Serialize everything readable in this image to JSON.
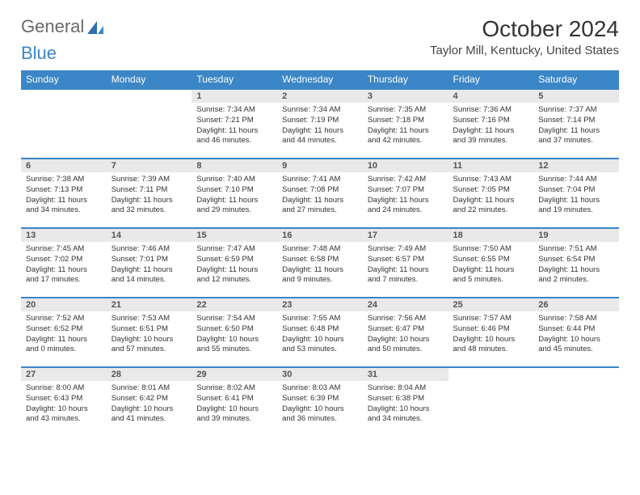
{
  "logo": {
    "part1": "General",
    "part2": "Blue"
  },
  "title": "October 2024",
  "location": "Taylor Mill, Kentucky, United States",
  "colors": {
    "header_bg": "#3b86c6",
    "header_text": "#ffffff",
    "daynum_bg": "#e9e9e9",
    "border": "#3b86c6",
    "text": "#333333"
  },
  "weekdays": [
    "Sunday",
    "Monday",
    "Tuesday",
    "Wednesday",
    "Thursday",
    "Friday",
    "Saturday"
  ],
  "weeks": [
    [
      {
        "blank": true
      },
      {
        "blank": true
      },
      {
        "n": "1",
        "sr": "Sunrise: 7:34 AM",
        "ss": "Sunset: 7:21 PM",
        "dl": "Daylight: 11 hours and 46 minutes."
      },
      {
        "n": "2",
        "sr": "Sunrise: 7:34 AM",
        "ss": "Sunset: 7:19 PM",
        "dl": "Daylight: 11 hours and 44 minutes."
      },
      {
        "n": "3",
        "sr": "Sunrise: 7:35 AM",
        "ss": "Sunset: 7:18 PM",
        "dl": "Daylight: 11 hours and 42 minutes."
      },
      {
        "n": "4",
        "sr": "Sunrise: 7:36 AM",
        "ss": "Sunset: 7:16 PM",
        "dl": "Daylight: 11 hours and 39 minutes."
      },
      {
        "n": "5",
        "sr": "Sunrise: 7:37 AM",
        "ss": "Sunset: 7:14 PM",
        "dl": "Daylight: 11 hours and 37 minutes."
      }
    ],
    [
      {
        "n": "6",
        "sr": "Sunrise: 7:38 AM",
        "ss": "Sunset: 7:13 PM",
        "dl": "Daylight: 11 hours and 34 minutes."
      },
      {
        "n": "7",
        "sr": "Sunrise: 7:39 AM",
        "ss": "Sunset: 7:11 PM",
        "dl": "Daylight: 11 hours and 32 minutes."
      },
      {
        "n": "8",
        "sr": "Sunrise: 7:40 AM",
        "ss": "Sunset: 7:10 PM",
        "dl": "Daylight: 11 hours and 29 minutes."
      },
      {
        "n": "9",
        "sr": "Sunrise: 7:41 AM",
        "ss": "Sunset: 7:08 PM",
        "dl": "Daylight: 11 hours and 27 minutes."
      },
      {
        "n": "10",
        "sr": "Sunrise: 7:42 AM",
        "ss": "Sunset: 7:07 PM",
        "dl": "Daylight: 11 hours and 24 minutes."
      },
      {
        "n": "11",
        "sr": "Sunrise: 7:43 AM",
        "ss": "Sunset: 7:05 PM",
        "dl": "Daylight: 11 hours and 22 minutes."
      },
      {
        "n": "12",
        "sr": "Sunrise: 7:44 AM",
        "ss": "Sunset: 7:04 PM",
        "dl": "Daylight: 11 hours and 19 minutes."
      }
    ],
    [
      {
        "n": "13",
        "sr": "Sunrise: 7:45 AM",
        "ss": "Sunset: 7:02 PM",
        "dl": "Daylight: 11 hours and 17 minutes."
      },
      {
        "n": "14",
        "sr": "Sunrise: 7:46 AM",
        "ss": "Sunset: 7:01 PM",
        "dl": "Daylight: 11 hours and 14 minutes."
      },
      {
        "n": "15",
        "sr": "Sunrise: 7:47 AM",
        "ss": "Sunset: 6:59 PM",
        "dl": "Daylight: 11 hours and 12 minutes."
      },
      {
        "n": "16",
        "sr": "Sunrise: 7:48 AM",
        "ss": "Sunset: 6:58 PM",
        "dl": "Daylight: 11 hours and 9 minutes."
      },
      {
        "n": "17",
        "sr": "Sunrise: 7:49 AM",
        "ss": "Sunset: 6:57 PM",
        "dl": "Daylight: 11 hours and 7 minutes."
      },
      {
        "n": "18",
        "sr": "Sunrise: 7:50 AM",
        "ss": "Sunset: 6:55 PM",
        "dl": "Daylight: 11 hours and 5 minutes."
      },
      {
        "n": "19",
        "sr": "Sunrise: 7:51 AM",
        "ss": "Sunset: 6:54 PM",
        "dl": "Daylight: 11 hours and 2 minutes."
      }
    ],
    [
      {
        "n": "20",
        "sr": "Sunrise: 7:52 AM",
        "ss": "Sunset: 6:52 PM",
        "dl": "Daylight: 11 hours and 0 minutes."
      },
      {
        "n": "21",
        "sr": "Sunrise: 7:53 AM",
        "ss": "Sunset: 6:51 PM",
        "dl": "Daylight: 10 hours and 57 minutes."
      },
      {
        "n": "22",
        "sr": "Sunrise: 7:54 AM",
        "ss": "Sunset: 6:50 PM",
        "dl": "Daylight: 10 hours and 55 minutes."
      },
      {
        "n": "23",
        "sr": "Sunrise: 7:55 AM",
        "ss": "Sunset: 6:48 PM",
        "dl": "Daylight: 10 hours and 53 minutes."
      },
      {
        "n": "24",
        "sr": "Sunrise: 7:56 AM",
        "ss": "Sunset: 6:47 PM",
        "dl": "Daylight: 10 hours and 50 minutes."
      },
      {
        "n": "25",
        "sr": "Sunrise: 7:57 AM",
        "ss": "Sunset: 6:46 PM",
        "dl": "Daylight: 10 hours and 48 minutes."
      },
      {
        "n": "26",
        "sr": "Sunrise: 7:58 AM",
        "ss": "Sunset: 6:44 PM",
        "dl": "Daylight: 10 hours and 45 minutes."
      }
    ],
    [
      {
        "n": "27",
        "sr": "Sunrise: 8:00 AM",
        "ss": "Sunset: 6:43 PM",
        "dl": "Daylight: 10 hours and 43 minutes."
      },
      {
        "n": "28",
        "sr": "Sunrise: 8:01 AM",
        "ss": "Sunset: 6:42 PM",
        "dl": "Daylight: 10 hours and 41 minutes."
      },
      {
        "n": "29",
        "sr": "Sunrise: 8:02 AM",
        "ss": "Sunset: 6:41 PM",
        "dl": "Daylight: 10 hours and 39 minutes."
      },
      {
        "n": "30",
        "sr": "Sunrise: 8:03 AM",
        "ss": "Sunset: 6:39 PM",
        "dl": "Daylight: 10 hours and 36 minutes."
      },
      {
        "n": "31",
        "sr": "Sunrise: 8:04 AM",
        "ss": "Sunset: 6:38 PM",
        "dl": "Daylight: 10 hours and 34 minutes."
      },
      {
        "blank": true
      },
      {
        "blank": true
      }
    ]
  ]
}
